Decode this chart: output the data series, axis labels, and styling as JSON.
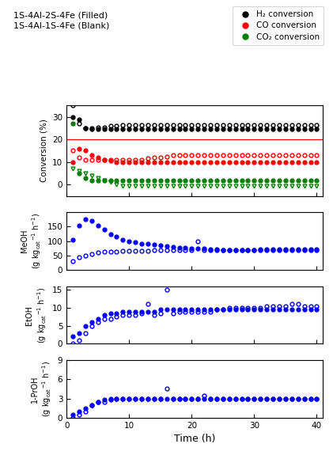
{
  "title_text": "1S-4Al-2S-4Fe (Filled)\n1S-4Al-1S-4Fe (Blank)",
  "legend_labels": [
    "H₂ conversion",
    "CO conversion",
    "CO₂ conversion"
  ],
  "time_filled": [
    1,
    2,
    3,
    4,
    5,
    6,
    7,
    8,
    9,
    10,
    11,
    12,
    13,
    14,
    15,
    16,
    17,
    18,
    19,
    20,
    21,
    22,
    23,
    24,
    25,
    26,
    27,
    28,
    29,
    30,
    31,
    32,
    33,
    34,
    35,
    36,
    37,
    38,
    39,
    40
  ],
  "time_blank": [
    1,
    2,
    3,
    4,
    5,
    6,
    7,
    8,
    9,
    10,
    11,
    12,
    13,
    14,
    15,
    16,
    17,
    18,
    19,
    20,
    21,
    22,
    23,
    24,
    25,
    26,
    27,
    28,
    29,
    30,
    31,
    32,
    33,
    34,
    35,
    36,
    37,
    38,
    39,
    40
  ],
  "h2_filled": [
    30,
    29,
    25,
    24.5,
    24.5,
    24.5,
    24.5,
    24.5,
    24.5,
    24.5,
    24.5,
    24.5,
    24.5,
    24.5,
    24.5,
    24.5,
    24.5,
    24.5,
    24.5,
    24.5,
    24.5,
    24.5,
    24.5,
    24.5,
    24.5,
    24.5,
    24.5,
    24.5,
    24.5,
    24.5,
    24.5,
    24.5,
    24.5,
    24.5,
    24.5,
    24.5,
    24.5,
    24.5,
    24.5,
    24.5
  ],
  "h2_blank": [
    35,
    27,
    25,
    25,
    25.5,
    25.5,
    26,
    26,
    26.5,
    26.5,
    26.5,
    26.5,
    26.5,
    26.5,
    26.5,
    26.5,
    26.5,
    26.5,
    26.5,
    26.5,
    26.5,
    26.5,
    26.5,
    26.5,
    26.5,
    26.5,
    26.5,
    26.5,
    26.5,
    26.5,
    26.5,
    26.5,
    26.5,
    26.5,
    26.5,
    26.5,
    26.5,
    26.5,
    26.5,
    26.5
  ],
  "co_filled": [
    10,
    16,
    15,
    13,
    12,
    11,
    10.5,
    10,
    10,
    10,
    10,
    10,
    10,
    10,
    10,
    10,
    10,
    10,
    10,
    10,
    10,
    10,
    10,
    10,
    10,
    10,
    10,
    10,
    10,
    10,
    10,
    10,
    10,
    10,
    10,
    10,
    10,
    10,
    10,
    10
  ],
  "co_blank": [
    15,
    12,
    11,
    11,
    11,
    11,
    11,
    11,
    11,
    11,
    11,
    11,
    11.5,
    12,
    12,
    12.5,
    13,
    13,
    13,
    13,
    13,
    13,
    13,
    13,
    13,
    13,
    13,
    13,
    13,
    13,
    13,
    13,
    13,
    13,
    13,
    13,
    13,
    13,
    13,
    13
  ],
  "co2_filled": [
    27,
    5,
    3,
    2,
    2,
    2,
    2,
    2,
    2,
    2,
    2,
    2,
    2,
    2,
    2,
    2,
    2,
    2,
    2,
    2,
    2,
    2,
    2,
    2,
    2,
    2,
    2,
    2,
    2,
    2,
    2,
    2,
    2,
    2,
    2,
    2,
    2,
    2,
    2,
    2
  ],
  "co2_blank": [
    7,
    6,
    5,
    4,
    3,
    2,
    1,
    0,
    -0.5,
    -0.5,
    -0.5,
    -0.5,
    -0.5,
    -0.5,
    -0.5,
    -0.5,
    -0.5,
    -0.5,
    -0.5,
    -0.5,
    -0.5,
    -0.5,
    -0.5,
    -0.5,
    -0.5,
    -0.5,
    -0.5,
    -0.5,
    -0.5,
    -0.5,
    -0.5,
    -0.5,
    -0.5,
    -0.5,
    -0.5,
    -0.5,
    -0.5,
    -0.5,
    -0.5,
    -0.5
  ],
  "meoh_filled": [
    105,
    155,
    175,
    170,
    155,
    140,
    125,
    115,
    105,
    100,
    95,
    92,
    90,
    88,
    85,
    83,
    80,
    78,
    76,
    75,
    74,
    73,
    72,
    71,
    70,
    70,
    70,
    70,
    70,
    70,
    70,
    70,
    70,
    70,
    70,
    70,
    70,
    70,
    70,
    70
  ],
  "meoh_blank": [
    30,
    45,
    50,
    55,
    60,
    62,
    63,
    64,
    65,
    66,
    67,
    67,
    67,
    68,
    68,
    68,
    68,
    68,
    68,
    68,
    100,
    68,
    70,
    70,
    70,
    70,
    70,
    70,
    70,
    70,
    72,
    72,
    72,
    72,
    72,
    72,
    72,
    72,
    72,
    72
  ],
  "etoh_filled": [
    2,
    3,
    5,
    6,
    7,
    8,
    8.5,
    8.5,
    9,
    9,
    9,
    9,
    9,
    9,
    9.5,
    9.5,
    9.5,
    9.5,
    9.5,
    9.5,
    9.5,
    9.5,
    9.5,
    9.5,
    9.5,
    9.5,
    9.5,
    9.5,
    9.5,
    9.5,
    9.5,
    9.5,
    9.5,
    9.5,
    9.5,
    9.5,
    9.5,
    9.5,
    9.5,
    9.5
  ],
  "etoh_blank": [
    0,
    1,
    3,
    5,
    6,
    7,
    7,
    7.5,
    8,
    8,
    8,
    8.5,
    11,
    8,
    8.5,
    15,
    8.5,
    9,
    9,
    9,
    9,
    9,
    9,
    9.5,
    9.5,
    10,
    10,
    10,
    10,
    10,
    10,
    10.5,
    10.5,
    10.5,
    10.5,
    11,
    11,
    10.5,
    10.5,
    10.5
  ],
  "proh_filled": [
    0.5,
    1,
    1.5,
    2,
    2.5,
    2.8,
    3,
    3,
    3,
    3,
    3,
    3,
    3,
    3,
    3,
    3,
    3,
    3,
    3,
    3,
    3,
    3,
    3,
    3,
    3,
    3,
    3,
    3,
    3,
    3,
    3,
    3,
    3,
    3,
    3,
    3,
    3,
    3,
    3,
    3
  ],
  "proh_blank": [
    0,
    0.5,
    1,
    2,
    2.5,
    2.5,
    2.8,
    3,
    3,
    3,
    3,
    3,
    3,
    3,
    3,
    4.5,
    3,
    3,
    3,
    3,
    3,
    3.5,
    3,
    3,
    3,
    3,
    3,
    3,
    3,
    3,
    3,
    3,
    3,
    3,
    3,
    3,
    3,
    3,
    3,
    3
  ],
  "hline_y": 20,
  "conv_ylim": [
    -5,
    35
  ],
  "conv_yticks": [
    0,
    10,
    20,
    30
  ],
  "meoh_ylim": [
    0,
    200
  ],
  "meoh_yticks": [
    0,
    50,
    100,
    150
  ],
  "etoh_ylim": [
    0,
    16
  ],
  "etoh_yticks": [
    0,
    5,
    10,
    15
  ],
  "proh_ylim": [
    0,
    9
  ],
  "proh_yticks": [
    0,
    3,
    6,
    9
  ],
  "xlim": [
    0,
    41
  ],
  "xticks": [
    0,
    10,
    20,
    30,
    40
  ]
}
